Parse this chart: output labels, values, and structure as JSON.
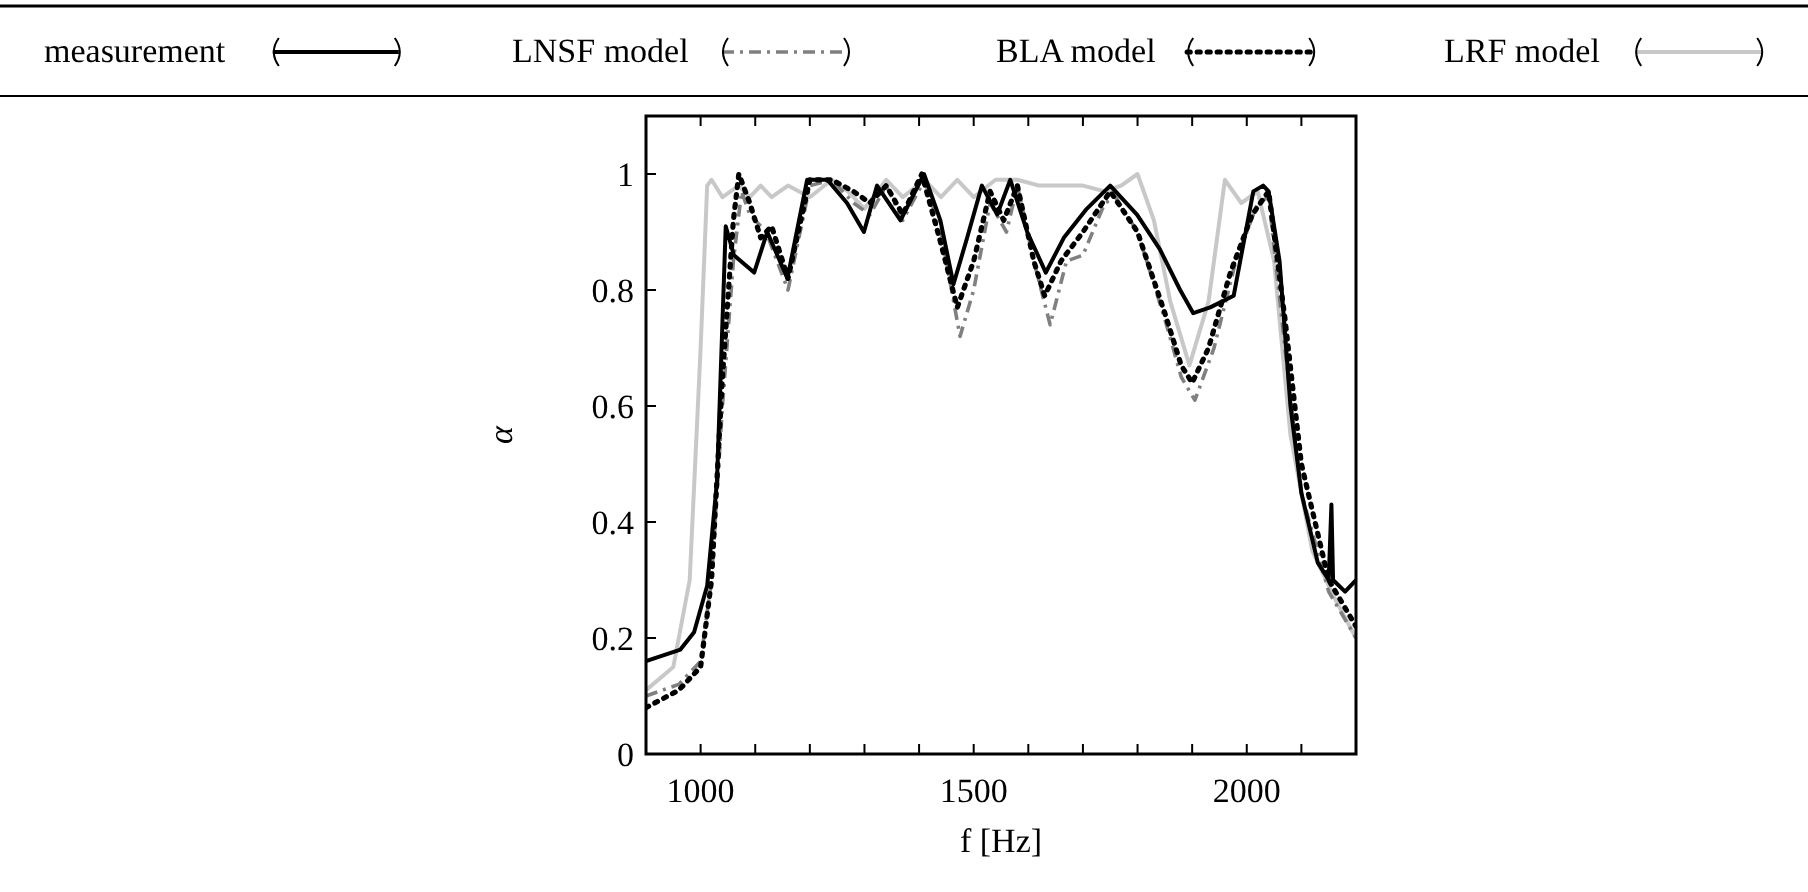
{
  "chart_data": {
    "type": "line",
    "xlabel": "f [Hz]",
    "ylabel": "α",
    "xlim": [
      900,
      2200
    ],
    "ylim": [
      0,
      1.1
    ],
    "xticks": [
      {
        "value": 900,
        "label": null
      },
      {
        "value": 1000,
        "label": "1000"
      },
      {
        "value": 1100,
        "label": null
      },
      {
        "value": 1200,
        "label": null
      },
      {
        "value": 1300,
        "label": null
      },
      {
        "value": 1400,
        "label": null
      },
      {
        "value": 1500,
        "label": "1500"
      },
      {
        "value": 1600,
        "label": null
      },
      {
        "value": 1700,
        "label": null
      },
      {
        "value": 1800,
        "label": null
      },
      {
        "value": 1900,
        "label": null
      },
      {
        "value": 2000,
        "label": "2000"
      },
      {
        "value": 2100,
        "label": null
      },
      {
        "value": 2200,
        "label": null
      }
    ],
    "yticks": [
      0,
      {
        "value": 0.2,
        "label": "0.2"
      },
      {
        "value": 0.4,
        "label": "0.4"
      },
      {
        "value": 0.6,
        "label": "0.6"
      },
      {
        "value": 0.8,
        "label": "0.8"
      },
      1
    ],
    "grid": false,
    "legend": "top",
    "series": [
      {
        "name": "LRF model",
        "color": "#c8c8c8",
        "line_style": "solid",
        "x": [
          900,
          950,
          980,
          1000,
          1012,
          1020,
          1040,
          1070,
          1090,
          1110,
          1130,
          1160,
          1200,
          1240,
          1270,
          1300,
          1340,
          1370,
          1410,
          1440,
          1470,
          1500,
          1540,
          1580,
          1620,
          1700,
          1740,
          1770,
          1800,
          1830,
          1860,
          1895,
          1930,
          1960,
          1990,
          2020,
          2050,
          2080,
          2120,
          2160,
          2200
        ],
        "values": [
          0.11,
          0.15,
          0.3,
          0.7,
          0.98,
          0.99,
          0.96,
          0.98,
          0.96,
          0.98,
          0.96,
          0.98,
          0.96,
          0.99,
          0.97,
          0.94,
          0.99,
          0.96,
          0.99,
          0.96,
          0.99,
          0.96,
          0.99,
          0.99,
          0.98,
          0.98,
          0.97,
          0.98,
          1.0,
          0.92,
          0.78,
          0.67,
          0.78,
          0.99,
          0.95,
          0.97,
          0.85,
          0.55,
          0.35,
          0.27,
          0.2
        ]
      },
      {
        "name": "LNSF model",
        "color": "#808080",
        "line_style": "dashdot",
        "x": [
          900,
          960,
          1000,
          1020,
          1040,
          1060,
          1075,
          1090,
          1120,
          1160,
          1200,
          1240,
          1280,
          1310,
          1340,
          1370,
          1410,
          1440,
          1475,
          1500,
          1530,
          1560,
          1580,
          1610,
          1640,
          1670,
          1700,
          1740,
          1760,
          1800,
          1850,
          1880,
          1905,
          1940,
          1980,
          2020,
          2040,
          2070,
          2100,
          2150,
          2200
        ],
        "values": [
          0.1,
          0.12,
          0.16,
          0.3,
          0.6,
          0.85,
          0.97,
          0.93,
          0.9,
          0.8,
          0.98,
          0.99,
          0.95,
          0.93,
          0.98,
          0.92,
          0.99,
          0.9,
          0.72,
          0.8,
          0.95,
          0.9,
          0.98,
          0.85,
          0.74,
          0.85,
          0.86,
          0.95,
          0.96,
          0.9,
          0.75,
          0.65,
          0.61,
          0.7,
          0.85,
          0.95,
          0.96,
          0.7,
          0.45,
          0.28,
          0.2
        ]
      },
      {
        "name": "BLA model",
        "color": "#000000",
        "line_style": "dotted",
        "x": [
          900,
          960,
          1000,
          1020,
          1040,
          1060,
          1070,
          1090,
          1110,
          1130,
          1160,
          1200,
          1240,
          1280,
          1310,
          1340,
          1370,
          1405,
          1440,
          1470,
          1500,
          1530,
          1555,
          1580,
          1610,
          1630,
          1660,
          1700,
          1750,
          1800,
          1850,
          1880,
          1900,
          1930,
          1970,
          2010,
          2040,
          2070,
          2100,
          2150,
          2200
        ],
        "values": [
          0.08,
          0.11,
          0.15,
          0.3,
          0.65,
          0.92,
          1.0,
          0.95,
          0.89,
          0.91,
          0.82,
          0.99,
          0.99,
          0.97,
          0.95,
          0.98,
          0.93,
          1.0,
          0.88,
          0.77,
          0.85,
          0.97,
          0.92,
          0.98,
          0.85,
          0.79,
          0.85,
          0.9,
          0.97,
          0.9,
          0.76,
          0.67,
          0.64,
          0.7,
          0.83,
          0.93,
          0.97,
          0.75,
          0.5,
          0.3,
          0.22
        ]
      },
      {
        "name": "measurement",
        "color": "#000000",
        "line_style": "solid",
        "x": [
          900,
          963,
          988,
          1012,
          1030,
          1046,
          1061,
          1098,
          1122,
          1159,
          1195,
          1232,
          1268,
          1299,
          1323,
          1366,
          1409,
          1439,
          1463,
          1488,
          1515,
          1543,
          1567,
          1598,
          1632,
          1665,
          1707,
          1750,
          1799,
          1841,
          1878,
          1902,
          1933,
          1976,
          2012,
          2030,
          2040,
          2060,
          2080,
          2100,
          2130,
          2150,
          2155,
          2158,
          2180,
          2200
        ],
        "values": [
          0.16,
          0.18,
          0.21,
          0.29,
          0.47,
          0.91,
          0.86,
          0.83,
          0.9,
          0.82,
          0.99,
          0.99,
          0.95,
          0.9,
          0.98,
          0.92,
          1.0,
          0.92,
          0.81,
          0.89,
          0.98,
          0.93,
          0.99,
          0.9,
          0.83,
          0.89,
          0.94,
          0.98,
          0.93,
          0.87,
          0.8,
          0.76,
          0.77,
          0.79,
          0.97,
          0.98,
          0.97,
          0.85,
          0.6,
          0.45,
          0.33,
          0.3,
          0.43,
          0.3,
          0.28,
          0.3
        ]
      }
    ]
  }
}
